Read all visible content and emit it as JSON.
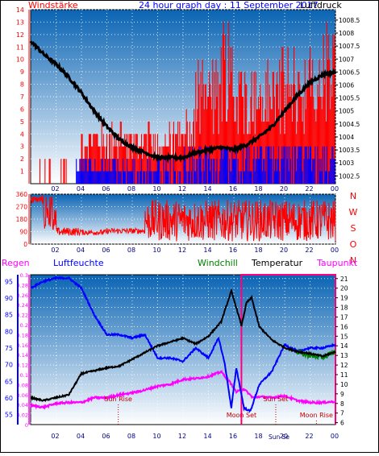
{
  "header": {
    "left_label": "Windstärke",
    "center_label": "24 hour graph day : 11 September 2017",
    "right_label": "Luftdruck"
  },
  "lower_header": {
    "regen": "Regen",
    "luftfeuchte": "Luftfeuchte",
    "windchill": "Windchill",
    "temperatur": "Temperatur",
    "taupunkt": "Taupunkt"
  },
  "compass_letters": [
    "N",
    "W",
    "S",
    "O",
    "N"
  ],
  "colors": {
    "panel_top": "#0a64b4",
    "panel_bottom": "#ffffff",
    "wind_bars": "#ff0000",
    "gust_bars": "#0000ff",
    "pressure_line": "#000000",
    "wind_dir": "#ff0000",
    "temperature": "#000000",
    "humidity": "#0000ff",
    "dewpoint": "#ff00ff",
    "windchill": "#008000",
    "rain": "#ff0080",
    "axis_left": "#ff0000",
    "axis_right": "#000000",
    "lower_axis_left1": "#ff00ff",
    "lower_axis_left2": "#0000ff"
  },
  "chart_data": [
    {
      "type": "bar",
      "name": "Windstärke / Luftdruck",
      "x_ticks": [
        "02",
        "04",
        "06",
        "08",
        "10",
        "12",
        "14",
        "16",
        "18",
        "20",
        "22",
        "00"
      ],
      "y_left": {
        "label": "Windstärke",
        "ticks": [
          "1",
          "2",
          "3",
          "4",
          "5",
          "6",
          "7",
          "8",
          "9",
          "10",
          "11",
          "12",
          "13",
          "14"
        ],
        "range": [
          0,
          14
        ]
      },
      "y_right": {
        "label": "Luftdruck",
        "ticks": [
          "1002.5",
          "1003",
          "1003.5",
          "1004",
          "1004.5",
          "1005",
          "1005.5",
          "1006",
          "1006.5",
          "1007",
          "1007.5",
          "1008",
          "1008.5"
        ],
        "range": [
          1002.2,
          1008.9
        ]
      },
      "series": [
        {
          "name": "wind",
          "hourly_max": [
            2,
            2,
            2,
            3,
            5,
            5,
            5,
            5,
            5,
            5,
            5,
            5,
            6,
            10,
            10,
            14,
            10,
            10,
            10,
            11,
            11,
            11,
            11,
            13
          ]
        },
        {
          "name": "pressure",
          "points": [
            [
              0,
              1007.7
            ],
            [
              1,
              1007.2
            ],
            [
              2,
              1006.8
            ],
            [
              3,
              1006.3
            ],
            [
              4,
              1005.7
            ],
            [
              5,
              1005.0
            ],
            [
              6,
              1004.4
            ],
            [
              7,
              1003.9
            ],
            [
              8,
              1003.6
            ],
            [
              9,
              1003.4
            ],
            [
              10,
              1003.2
            ],
            [
              11,
              1003.2
            ],
            [
              12,
              1003.2
            ],
            [
              13,
              1003.4
            ],
            [
              14,
              1003.5
            ],
            [
              15,
              1003.6
            ],
            [
              16,
              1003.5
            ],
            [
              17,
              1003.7
            ],
            [
              18,
              1004.0
            ],
            [
              19,
              1004.4
            ],
            [
              20,
              1005.0
            ],
            [
              21,
              1005.6
            ],
            [
              22,
              1006.1
            ],
            [
              23,
              1006.4
            ],
            [
              24,
              1006.5
            ]
          ]
        }
      ]
    },
    {
      "type": "line",
      "name": "Windrichtung",
      "x_ticks": [
        "02",
        "04",
        "06",
        "08",
        "10",
        "12",
        "14",
        "16",
        "18",
        "20",
        "22",
        "00"
      ],
      "y_ticks": [
        "0",
        "90",
        "180",
        "270",
        "360"
      ],
      "y_range": [
        0,
        360
      ],
      "series": [
        {
          "name": "direction",
          "segments": [
            {
              "from": 0,
              "to": 1,
              "mid": 320,
              "spread": 30
            },
            {
              "from": 1,
              "to": 2,
              "mid": 200,
              "spread": 100
            },
            {
              "from": 2,
              "to": 4,
              "mid": 90,
              "spread": 30
            },
            {
              "from": 4,
              "to": 6,
              "mid": 85,
              "spread": 20
            },
            {
              "from": 6,
              "to": 9,
              "mid": 95,
              "spread": 20
            },
            {
              "from": 9,
              "to": 24,
              "mid": 170,
              "spread": 150
            }
          ]
        }
      ]
    },
    {
      "type": "line",
      "name": "Regen / Luftfeuchte / Temperatur",
      "x_ticks": [
        "02",
        "04",
        "06",
        "08",
        "10",
        "12",
        "14",
        "16",
        "18",
        "20",
        "22",
        "00"
      ],
      "y_rain_ticks": [
        "0",
        "0.02",
        "0.04",
        "0.06",
        "0.08",
        "0.1",
        "0.12",
        "0.14",
        "0.16",
        "0.18",
        "0.2",
        "0.22",
        "0.24",
        "0.26",
        "0.28",
        "0.3"
      ],
      "y_hum_ticks": [
        "55",
        "60",
        "65",
        "70",
        "75",
        "80",
        "85",
        "90",
        "95"
      ],
      "y_temp_ticks": [
        "6",
        "7",
        "8",
        "9",
        "10",
        "11",
        "12",
        "13",
        "14",
        "15",
        "16",
        "17",
        "18",
        "19",
        "20",
        "21"
      ],
      "rain_range": [
        0,
        0.3
      ],
      "hum_range": [
        52,
        97
      ],
      "temp_range": [
        5.8,
        21.4
      ],
      "series": [
        {
          "name": "temperature",
          "points": [
            [
              0,
              8.6
            ],
            [
              1,
              8.3
            ],
            [
              2,
              8.6
            ],
            [
              3,
              8.9
            ],
            [
              4,
              11.1
            ],
            [
              5,
              11.4
            ],
            [
              6,
              11.7
            ],
            [
              7,
              11.9
            ],
            [
              8,
              12.6
            ],
            [
              9,
              13.3
            ],
            [
              10,
              14.0
            ],
            [
              11,
              14.4
            ],
            [
              12,
              14.8
            ],
            [
              13,
              14.2
            ],
            [
              14,
              15.0
            ],
            [
              15,
              16.5
            ],
            [
              15.8,
              19.7
            ],
            [
              16.3,
              17.5
            ],
            [
              16.6,
              16.1
            ],
            [
              17,
              18.5
            ],
            [
              17.4,
              19.0
            ],
            [
              18,
              16.0
            ],
            [
              19,
              14.6
            ],
            [
              20,
              13.8
            ],
            [
              21,
              13.4
            ],
            [
              22,
              13.2
            ],
            [
              23,
              12.9
            ],
            [
              24,
              13.4
            ]
          ]
        },
        {
          "name": "humidity",
          "points": [
            [
              0,
              93
            ],
            [
              1,
              95
            ],
            [
              2,
              96
            ],
            [
              3,
              96
            ],
            [
              4,
              93
            ],
            [
              5,
              85
            ],
            [
              6,
              79
            ],
            [
              7,
              79
            ],
            [
              8,
              78
            ],
            [
              9,
              79
            ],
            [
              10,
              72
            ],
            [
              11,
              72
            ],
            [
              12,
              71
            ],
            [
              13,
              75
            ],
            [
              14,
              72
            ],
            [
              14.8,
              78
            ],
            [
              15.3,
              70
            ],
            [
              15.8,
              57
            ],
            [
              16.2,
              69
            ],
            [
              16.8,
              57
            ],
            [
              17.3,
              56
            ],
            [
              18,
              64
            ],
            [
              19,
              68
            ],
            [
              20,
              76
            ],
            [
              21,
              74
            ],
            [
              22,
              75
            ],
            [
              23,
              75
            ],
            [
              24,
              76
            ]
          ]
        },
        {
          "name": "dewpoint",
          "points": [
            [
              0,
              7.8
            ],
            [
              1,
              7.6
            ],
            [
              2,
              8.0
            ],
            [
              3,
              8.1
            ],
            [
              4,
              8.1
            ],
            [
              5,
              8.6
            ],
            [
              6,
              8.6
            ],
            [
              7,
              8.9
            ],
            [
              8,
              9.1
            ],
            [
              9,
              9.4
            ],
            [
              10,
              9.8
            ],
            [
              11,
              10.0
            ],
            [
              12,
              10.5
            ],
            [
              13,
              10.6
            ],
            [
              14,
              10.8
            ],
            [
              15,
              11.3
            ],
            [
              15.7,
              10.2
            ],
            [
              16.2,
              9.2
            ],
            [
              16.8,
              9.5
            ],
            [
              17.5,
              8.6
            ],
            [
              18,
              8.7
            ],
            [
              19,
              8.6
            ],
            [
              20,
              8.8
            ],
            [
              21,
              8.3
            ],
            [
              22,
              8.1
            ],
            [
              23,
              8.1
            ],
            [
              24,
              8.2
            ]
          ]
        },
        {
          "name": "windchill",
          "points": [
            [
              21,
              13.3
            ],
            [
              22,
              13.0
            ],
            [
              23,
              12.8
            ],
            [
              24,
              13.4
            ]
          ]
        },
        {
          "name": "rain",
          "value": 0.3,
          "from": 16.6,
          "to": 24
        }
      ],
      "annotations": [
        {
          "text": "Sun Rise",
          "x": 6.9
        },
        {
          "text": "Moon Set",
          "x": 16.6
        },
        {
          "text": "Sun Set",
          "x": 19.3
        },
        {
          "text": "Moon Rise",
          "x": 22.5
        }
      ],
      "bottom_annotations": [
        {
          "text": "Sun Se",
          "x": 19.3
        }
      ]
    }
  ]
}
